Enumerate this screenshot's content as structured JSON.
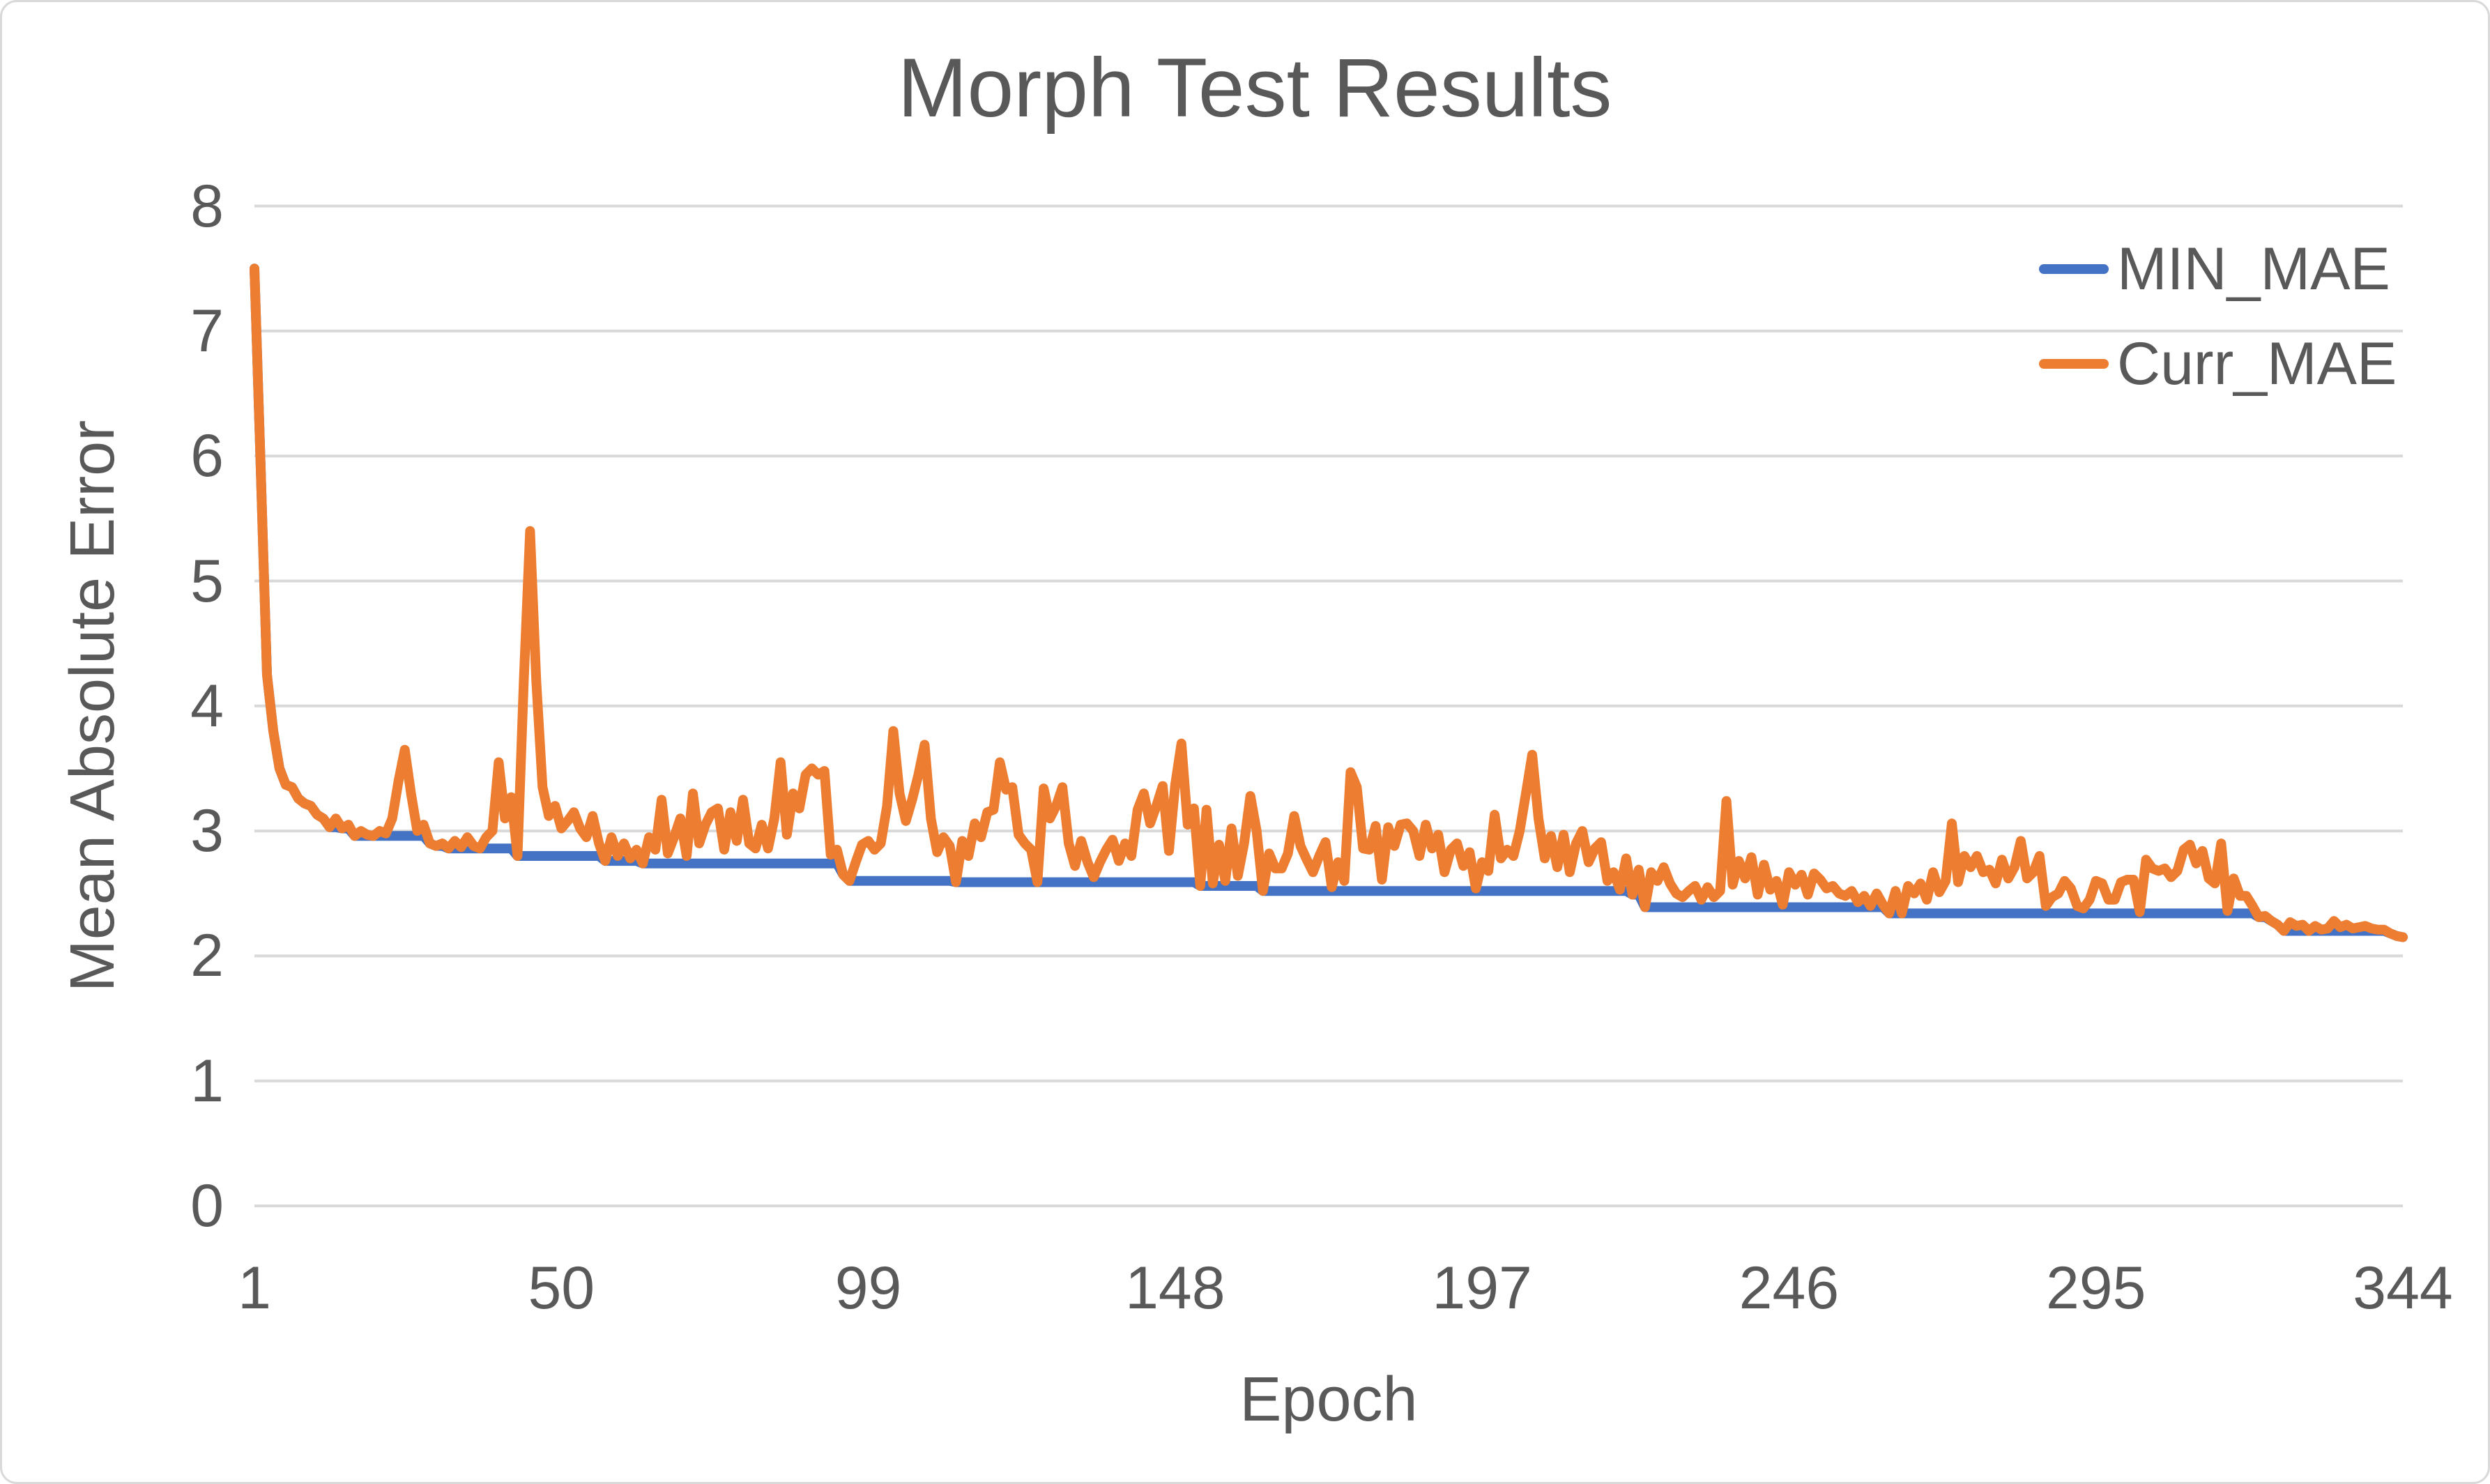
{
  "chart": {
    "title": "Morph Test Results",
    "x_axis_label": "Epoch",
    "y_axis_label": "Mean Absolute Error",
    "colors": {
      "min_mae": "#4472C4",
      "curr_mae": "#ED7D31",
      "text": "#595959",
      "gridline": "#D9D9D9",
      "background": "#FFFFFF"
    }
  },
  "legend": {
    "entries": [
      {
        "label": "MIN_MAE",
        "color": "#4472C4"
      },
      {
        "label": "Curr_MAE",
        "color": "#ED7D31"
      }
    ]
  },
  "chart_data": {
    "type": "line",
    "title": "Morph Test Results",
    "xlabel": "Epoch",
    "ylabel": "Mean Absolute Error",
    "ylim": [
      0,
      8
    ],
    "yticks": [
      0,
      1,
      2,
      3,
      4,
      5,
      6,
      7,
      8
    ],
    "xticks": [
      1,
      50,
      99,
      148,
      197,
      246,
      295,
      344
    ],
    "x_start": 1,
    "x_step": 1,
    "x_count": 344,
    "grid": "horizontal",
    "legend_position": "top-right-inside",
    "series": [
      {
        "name": "MIN_MAE",
        "color": "#4472C4",
        "derived": "running_min",
        "derived_from": "Curr_MAE"
      },
      {
        "name": "Curr_MAE",
        "color": "#ED7D31",
        "values": [
          7.5,
          5.9,
          4.25,
          3.8,
          3.5,
          3.37,
          3.35,
          3.26,
          3.22,
          3.2,
          3.13,
          3.1,
          3.03,
          3.1,
          3.02,
          3.05,
          2.96,
          3.0,
          2.97,
          2.96,
          3.0,
          2.98,
          3.1,
          3.4,
          3.65,
          3.3,
          3.0,
          3.05,
          2.9,
          2.88,
          2.9,
          2.86,
          2.92,
          2.87,
          2.95,
          2.88,
          2.86,
          2.95,
          3.0,
          3.55,
          3.1,
          3.27,
          2.8,
          4.2,
          5.4,
          4.2,
          3.35,
          3.12,
          3.2,
          3.02,
          3.08,
          3.15,
          3.02,
          2.95,
          3.12,
          2.9,
          2.76,
          2.95,
          2.8,
          2.9,
          2.78,
          2.85,
          2.74,
          2.95,
          2.85,
          3.25,
          2.82,
          2.95,
          3.1,
          2.8,
          3.3,
          2.9,
          3.05,
          3.15,
          3.18,
          2.85,
          3.15,
          2.92,
          3.25,
          2.9,
          2.86,
          3.05,
          2.86,
          3.1,
          3.55,
          2.97,
          3.3,
          3.18,
          3.45,
          3.5,
          3.45,
          3.48,
          2.81,
          2.85,
          2.65,
          2.6,
          2.75,
          2.89,
          2.92,
          2.85,
          2.9,
          3.2,
          3.8,
          3.3,
          3.08,
          3.25,
          3.45,
          3.69,
          3.1,
          2.83,
          2.95,
          2.88,
          2.59,
          2.92,
          2.8,
          3.06,
          2.95,
          3.15,
          3.17,
          3.55,
          3.33,
          3.35,
          2.97,
          2.9,
          2.85,
          2.59,
          3.34,
          3.1,
          3.2,
          3.35,
          2.9,
          2.72,
          2.92,
          2.75,
          2.63,
          2.75,
          2.85,
          2.93,
          2.76,
          2.9,
          2.8,
          3.17,
          3.3,
          3.06,
          3.2,
          3.36,
          2.84,
          3.37,
          3.7,
          3.05,
          3.18,
          2.56,
          3.17,
          2.58,
          2.89,
          2.6,
          3.02,
          2.64,
          2.9,
          3.28,
          3.0,
          2.52,
          2.82,
          2.7,
          2.7,
          2.82,
          3.12,
          2.88,
          2.77,
          2.67,
          2.8,
          2.91,
          2.55,
          2.75,
          2.6,
          3.47,
          3.35,
          2.86,
          2.85,
          3.04,
          2.61,
          3.03,
          2.88,
          3.05,
          3.06,
          3.0,
          2.8,
          3.05,
          2.86,
          2.97,
          2.67,
          2.85,
          2.9,
          2.72,
          2.83,
          2.54,
          2.75,
          2.68,
          3.13,
          2.78,
          2.85,
          2.8,
          3.0,
          3.3,
          3.61,
          3.1,
          2.78,
          2.96,
          2.71,
          2.97,
          2.67,
          2.9,
          3.0,
          2.75,
          2.86,
          2.91,
          2.6,
          2.67,
          2.53,
          2.78,
          2.49,
          2.69,
          2.39,
          2.67,
          2.6,
          2.71,
          2.58,
          2.5,
          2.47,
          2.52,
          2.56,
          2.45,
          2.55,
          2.47,
          2.52,
          3.24,
          2.57,
          2.76,
          2.62,
          2.79,
          2.49,
          2.73,
          2.53,
          2.6,
          2.41,
          2.67,
          2.57,
          2.65,
          2.49,
          2.66,
          2.61,
          2.54,
          2.56,
          2.5,
          2.48,
          2.52,
          2.43,
          2.48,
          2.4,
          2.5,
          2.41,
          2.34,
          2.52,
          2.34,
          2.56,
          2.5,
          2.58,
          2.45,
          2.67,
          2.51,
          2.6,
          3.06,
          2.59,
          2.8,
          2.71,
          2.8,
          2.67,
          2.69,
          2.58,
          2.77,
          2.62,
          2.71,
          2.92,
          2.62,
          2.67,
          2.8,
          2.4,
          2.47,
          2.5,
          2.6,
          2.54,
          2.4,
          2.38,
          2.45,
          2.6,
          2.58,
          2.45,
          2.45,
          2.59,
          2.61,
          2.61,
          2.35,
          2.77,
          2.7,
          2.68,
          2.7,
          2.63,
          2.68,
          2.85,
          2.89,
          2.74,
          2.84,
          2.62,
          2.58,
          2.9,
          2.36,
          2.62,
          2.48,
          2.48,
          2.4,
          2.31,
          2.32,
          2.28,
          2.25,
          2.2,
          2.27,
          2.24,
          2.25,
          2.2,
          2.24,
          2.21,
          2.22,
          2.28,
          2.23,
          2.25,
          2.22,
          2.23,
          2.24,
          2.22,
          2.21,
          2.21,
          2.18,
          2.16,
          2.15
        ]
      }
    ]
  }
}
